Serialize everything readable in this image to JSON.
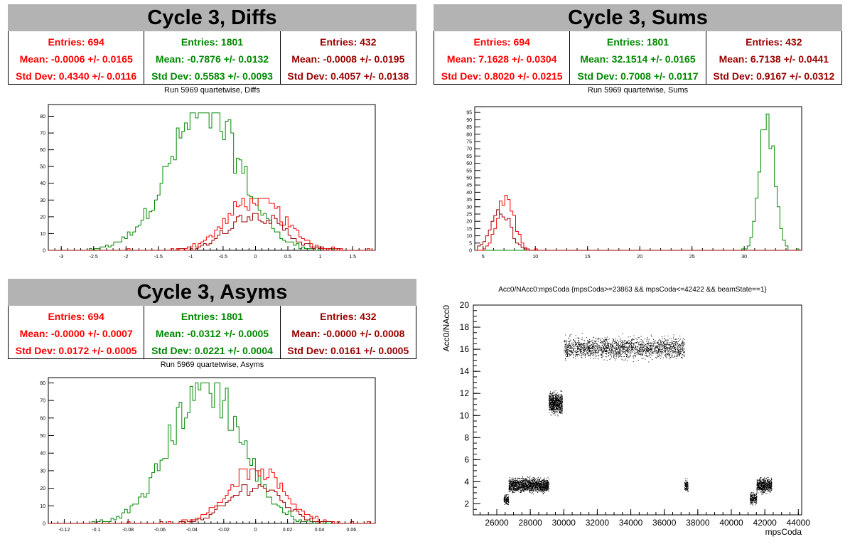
{
  "colors": {
    "red": "#ff0000",
    "green": "#008800",
    "darkred": "#990000",
    "title_bg": "#b3b3b3"
  },
  "panels": {
    "diffs": {
      "title": "Cycle 3, Diffs",
      "subtitle": "Run 5969 quartetwise, Diffs",
      "stats": [
        {
          "entries": "Entries: 694",
          "mean": "Mean: -0.0006 +/- 0.0165",
          "std": "Std Dev: 0.4340 +/- 0.0116"
        },
        {
          "entries": "Entries: 1801",
          "mean": "Mean: -0.7876 +/- 0.0132",
          "std": "Std Dev: 0.5583 +/- 0.0093"
        },
        {
          "entries": "Entries: 432",
          "mean": "Mean: -0.0008 +/- 0.0195",
          "std": "Std Dev: 0.4057 +/- 0.0138"
        }
      ]
    },
    "sums": {
      "title": "Cycle 3, Sums",
      "subtitle": "Run 5969 quartetwise, Sums",
      "stats": [
        {
          "entries": "Entries: 694",
          "mean": "Mean: 7.1628 +/- 0.0304",
          "std": "Std Dev: 0.8020 +/- 0.0215"
        },
        {
          "entries": "Entries: 1801",
          "mean": "Mean: 32.1514 +/- 0.0165",
          "std": "Std Dev: 0.7008 +/- 0.0117"
        },
        {
          "entries": "Entries: 432",
          "mean": "Mean: 6.7138 +/- 0.0441",
          "std": "Std Dev: 0.9167 +/- 0.0312"
        }
      ]
    },
    "asyms": {
      "title": "Cycle 3, Asyms",
      "subtitle": "Run 5969 quartetwise, Asyms",
      "stats": [
        {
          "entries": "Entries: 694",
          "mean": "Mean: -0.0000 +/- 0.0007",
          "std": "Std Dev: 0.0172 +/- 0.0005"
        },
        {
          "entries": "Entries: 1801",
          "mean": "Mean: -0.0312 +/- 0.0005",
          "std": "Std Dev: 0.0221 +/- 0.0004"
        },
        {
          "entries": "Entries: 432",
          "mean": "Mean: -0.0000 +/- 0.0008",
          "std": "Std Dev: 0.0161 +/- 0.0005"
        }
      ]
    },
    "scatter": {
      "title": "Acc0/NAcc0:mpsCoda {mpsCoda>=23863 && mpsCoda<=42422 && beamState==1}",
      "xlabel": "mpsCoda",
      "ylabel": "Acc0/NAcc0"
    }
  },
  "chart_data": [
    {
      "type": "histogram",
      "title": "Run 5969 quartetwise, Diffs",
      "xlim": [
        -3.2,
        1.85
      ],
      "ylim": [
        0,
        87
      ],
      "xticks": [
        -3,
        -2.5,
        -2,
        -1.5,
        -1,
        -0.5,
        0,
        0.5,
        1,
        1.5
      ],
      "yticks": [
        0,
        10,
        20,
        30,
        40,
        50,
        60,
        70,
        80
      ],
      "series": [
        {
          "color": "green",
          "entries": 1801,
          "mean": -0.7876,
          "std": 0.5583,
          "peak": 82
        },
        {
          "color": "red",
          "entries": 694,
          "mean": -0.0006,
          "std": 0.434,
          "peak": 31
        },
        {
          "color": "darkred",
          "entries": 432,
          "mean": -0.0008,
          "std": 0.4057,
          "peak": 22
        }
      ]
    },
    {
      "type": "histogram",
      "title": "Run 5969 quartetwise, Sums",
      "xlim": [
        4.2,
        35.5
      ],
      "ylim": [
        0,
        99
      ],
      "xticks": [
        5,
        10,
        15,
        20,
        25,
        30
      ],
      "yticks": [
        0,
        5,
        10,
        15,
        20,
        25,
        30,
        35,
        40,
        45,
        50,
        55,
        60,
        65,
        70,
        75,
        80,
        85,
        90,
        95
      ],
      "series": [
        {
          "color": "green",
          "entries": 1801,
          "mean": 32.1514,
          "std": 0.7008,
          "peak": 96
        },
        {
          "color": "red",
          "entries": 694,
          "mean": 7.1628,
          "std": 0.802,
          "peak": 38
        },
        {
          "color": "darkred",
          "entries": 432,
          "mean": 6.7138,
          "std": 0.9167,
          "peak": 28
        }
      ]
    },
    {
      "type": "histogram",
      "title": "Run 5969 quartetwise, Asyms",
      "xlim": [
        -0.13,
        0.075
      ],
      "ylim": [
        0,
        83
      ],
      "xticks": [
        -0.12,
        -0.1,
        -0.08,
        -0.06,
        -0.04,
        -0.02,
        0,
        0.02,
        0.04,
        0.06
      ],
      "yticks": [
        0,
        10,
        20,
        30,
        40,
        50,
        60,
        70,
        80
      ],
      "series": [
        {
          "color": "green",
          "entries": 1801,
          "mean": -0.0312,
          "std": 0.0221,
          "peak": 80
        },
        {
          "color": "red",
          "entries": 694,
          "mean": -0.0,
          "std": 0.0172,
          "peak": 31
        },
        {
          "color": "darkred",
          "entries": 432,
          "mean": -0.0,
          "std": 0.0161,
          "peak": 22
        }
      ]
    },
    {
      "type": "scatter",
      "title": "Acc0/NAcc0:mpsCoda {mpsCoda>=23863 && mpsCoda<=42422 && beamState==1}",
      "xlabel": "mpsCoda",
      "ylabel": "Acc0/NAcc0",
      "xlim": [
        24600,
        44200
      ],
      "ylim": [
        1,
        20
      ],
      "xticks": [
        26000,
        28000,
        30000,
        32000,
        34000,
        36000,
        38000,
        40000,
        42000,
        44000
      ],
      "yticks": [
        2,
        4,
        6,
        8,
        10,
        12,
        14,
        16,
        18,
        20
      ],
      "clusters": [
        {
          "x": [
            26400,
            26700
          ],
          "y": [
            1.8,
            3.0
          ]
        },
        {
          "x": [
            26700,
            29100
          ],
          "y": [
            2.8,
            4.6
          ]
        },
        {
          "x": [
            29100,
            29900
          ],
          "y": [
            9.8,
            12.5
          ]
        },
        {
          "x": [
            30000,
            37200
          ],
          "y": [
            14.8,
            17.5
          ]
        },
        {
          "x": [
            37200,
            37400
          ],
          "y": [
            2.8,
            4.4
          ]
        },
        {
          "x": [
            41100,
            41500
          ],
          "y": [
            1.8,
            3.2
          ]
        },
        {
          "x": [
            41500,
            42400
          ],
          "y": [
            2.8,
            4.6
          ]
        }
      ]
    }
  ]
}
